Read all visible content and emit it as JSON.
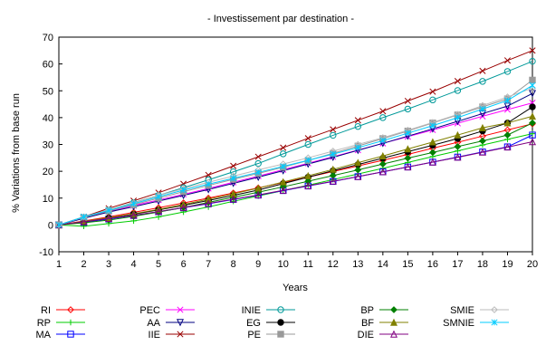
{
  "chart_data": {
    "type": "line",
    "title": "- Investissement par destination -",
    "xlabel": "Years",
    "ylabel": "% Variations from base run",
    "x": [
      1,
      2,
      3,
      4,
      5,
      6,
      7,
      8,
      9,
      10,
      11,
      12,
      13,
      14,
      15,
      16,
      17,
      18,
      19,
      20
    ],
    "xlim": [
      1,
      20
    ],
    "ylim": [
      -10,
      70
    ],
    "yticks": [
      -10,
      0,
      10,
      20,
      30,
      40,
      50,
      60,
      70
    ],
    "grid": false,
    "legend_position": "bottom",
    "series": [
      {
        "name": "RI",
        "color": "#ff0000",
        "marker": "diamond",
        "values": [
          0,
          1.5,
          3.0,
          4.7,
          6.4,
          8.2,
          10.0,
          11.9,
          13.8,
          15.8,
          17.8,
          19.9,
          22.0,
          24.1,
          26.3,
          28.6,
          30.8,
          33.1,
          35.4,
          37.7
        ]
      },
      {
        "name": "RP",
        "color": "#00cc00",
        "marker": "plus",
        "values": [
          0,
          -0.5,
          0.5,
          1.5,
          3.0,
          4.8,
          6.7,
          8.8,
          10.8,
          12.8,
          14.8,
          16.9,
          19.0,
          21.1,
          23.3,
          25.5,
          27.6,
          29.8,
          31.9,
          34.0
        ]
      },
      {
        "name": "MA",
        "color": "#0000ff",
        "marker": "square",
        "values": [
          0,
          1.0,
          2.2,
          3.5,
          4.9,
          6.4,
          7.9,
          9.5,
          11.1,
          12.8,
          14.5,
          16.2,
          18.0,
          19.8,
          21.6,
          23.4,
          25.3,
          27.2,
          29.1,
          33.5
        ]
      },
      {
        "name": "PEC",
        "color": "#ff00ff",
        "marker": "x",
        "values": [
          0,
          2.5,
          5.0,
          7.2,
          9.3,
          11.4,
          13.6,
          15.9,
          18.2,
          20.6,
          23.0,
          25.4,
          27.9,
          30.4,
          32.9,
          35.4,
          37.9,
          40.5,
          43.0,
          45.5
        ]
      },
      {
        "name": "AA",
        "color": "#000080",
        "marker": "triangle-down",
        "values": [
          0,
          2.5,
          4.8,
          6.8,
          8.9,
          11.0,
          13.2,
          15.5,
          17.8,
          20.2,
          22.7,
          25.2,
          27.8,
          30.4,
          33.1,
          35.8,
          38.6,
          41.5,
          44.3,
          49.0
        ]
      },
      {
        "name": "IIE",
        "color": "#990000",
        "marker": "x",
        "values": [
          0,
          3.0,
          6.2,
          9.0,
          12.0,
          15.3,
          18.6,
          22.0,
          25.4,
          28.8,
          32.3,
          35.6,
          39.0,
          42.4,
          46.2,
          49.7,
          53.6,
          57.4,
          61.3,
          65.0
        ]
      },
      {
        "name": "INIE",
        "color": "#009999",
        "marker": "circle",
        "values": [
          0,
          2.8,
          5.6,
          8.3,
          11.0,
          13.9,
          16.8,
          19.8,
          22.9,
          26.5,
          30.0,
          33.4,
          36.7,
          40.0,
          43.2,
          46.6,
          50.1,
          53.5,
          57.2,
          61.0
        ]
      },
      {
        "name": "EG",
        "color": "#000000",
        "marker": "dot",
        "values": [
          0,
          1.2,
          2.6,
          4.0,
          5.6,
          7.3,
          9.1,
          11.0,
          13.0,
          15.4,
          17.8,
          20.2,
          22.5,
          24.9,
          27.3,
          29.7,
          32.2,
          35.0,
          38.0,
          44.0
        ]
      },
      {
        "name": "PE",
        "color": "#999999",
        "marker": "square-filled",
        "values": [
          0,
          2.8,
          5.2,
          7.5,
          10.0,
          12.4,
          14.7,
          17.0,
          19.2,
          21.5,
          24.0,
          26.7,
          29.4,
          32.2,
          35.0,
          38.0,
          41.0,
          44.0,
          47.0,
          54.0
        ]
      },
      {
        "name": "BP",
        "color": "#008000",
        "marker": "diamond-filled",
        "values": [
          0,
          0.8,
          1.8,
          3.2,
          4.8,
          6.5,
          8.4,
          10.3,
          12.2,
          14.2,
          16.3,
          18.4,
          20.5,
          22.7,
          24.9,
          27.0,
          29.2,
          31.3,
          33.5,
          38.0
        ]
      },
      {
        "name": "BF",
        "color": "#808000",
        "marker": "triangle-filled",
        "values": [
          0,
          1.3,
          2.7,
          4.2,
          5.8,
          7.6,
          9.6,
          11.6,
          13.7,
          16.0,
          18.3,
          20.7,
          23.2,
          25.7,
          28.3,
          30.9,
          33.5,
          36.2,
          38.0,
          40.5
        ]
      },
      {
        "name": "DIE",
        "color": "#800080",
        "marker": "triangle",
        "values": [
          0,
          1.2,
          2.4,
          3.6,
          5.0,
          6.5,
          8.0,
          9.6,
          11.2,
          12.9,
          14.6,
          16.3,
          18.0,
          19.8,
          21.6,
          23.4,
          25.2,
          27.1,
          29.0,
          31.0
        ]
      },
      {
        "name": "SMIE",
        "color": "#bbbbbb",
        "marker": "diamond",
        "values": [
          0,
          3.0,
          5.6,
          8.2,
          11.0,
          13.5,
          15.9,
          18.2,
          20.5,
          22.7,
          25.0,
          27.5,
          30.0,
          32.5,
          35.3,
          38.2,
          41.2,
          44.5,
          47.7,
          51.0
        ]
      },
      {
        "name": "SMNIE",
        "color": "#00ccff",
        "marker": "asterisk",
        "values": [
          0,
          3.0,
          5.4,
          7.9,
          10.5,
          13.0,
          15.2,
          17.4,
          19.6,
          21.8,
          24.1,
          26.4,
          28.8,
          31.4,
          34.2,
          37.0,
          40.0,
          43.2,
          46.4,
          52.0
        ]
      }
    ]
  }
}
